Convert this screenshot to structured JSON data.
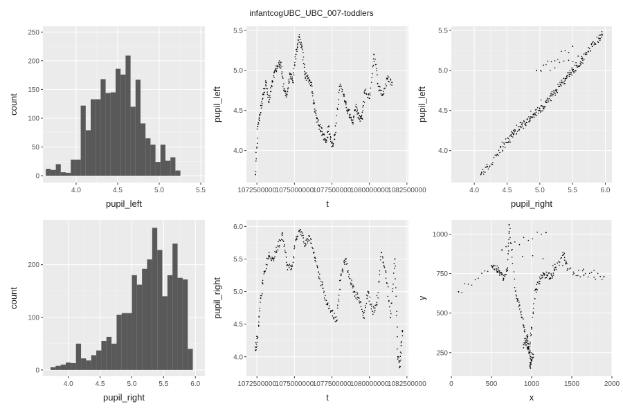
{
  "title": "infantcogUBC_UBC_007-toddlers",
  "colors": {
    "panel_bg": "#ebebeb",
    "grid_major": "#ffffff",
    "bar_fill": "#595959",
    "point": "#000000"
  },
  "chart_data": [
    {
      "id": "hist-pupil-left",
      "type": "bar",
      "xlabel": "pupil_left",
      "ylabel": "count",
      "xlim": [
        3.6,
        5.55
      ],
      "ylim": [
        -12,
        260
      ],
      "xticks": [
        4.0,
        4.5,
        5.0,
        5.5
      ],
      "xtick_labels": [
        "4.0",
        "4.5",
        "5.0",
        "5.5"
      ],
      "yticks": [
        0,
        50,
        100,
        150,
        200,
        250
      ],
      "ytick_labels": [
        "0",
        "50",
        "100",
        "150",
        "200",
        "250"
      ],
      "bin_start": 3.635,
      "bin_width": 0.06,
      "values": [
        12,
        10,
        20,
        6,
        5,
        28,
        28,
        122,
        79,
        133,
        133,
        168,
        144,
        145,
        186,
        176,
        209,
        120,
        167,
        91,
        65,
        54,
        24,
        54,
        26,
        32,
        9
      ]
    },
    {
      "id": "scatter-t-pupil-left",
      "type": "scatter",
      "xlabel": "t",
      "ylabel": "pupil_left",
      "xlim": [
        1071800000,
        1082600000
      ],
      "ylim": [
        3.6,
        5.55
      ],
      "xticks": [
        1072500000,
        1075000000,
        1077500000,
        1080000000,
        1082500000
      ],
      "xtick_labels": [
        "1072500000",
        "1075000000",
        "1077500000",
        "1080000000",
        "1082500000"
      ],
      "yticks": [
        4.0,
        4.5,
        5.0,
        5.5
      ],
      "ytick_labels": [
        "4.0",
        "4.5",
        "5.0",
        "5.5"
      ],
      "x": [
        1072400000,
        1072550000,
        1072700000,
        1072900000,
        1073100000,
        1073300000,
        1073500000,
        1073700000,
        1073900000,
        1074100000,
        1074300000,
        1074500000,
        1074700000,
        1074900000,
        1075100000,
        1075300000,
        1075500000,
        1075700000,
        1075900000,
        1076100000,
        1076300000,
        1076500000,
        1076700000,
        1076900000,
        1077100000,
        1077300000,
        1077500000,
        1077700000,
        1078000000,
        1078300000,
        1078500000,
        1078700000,
        1078900000,
        1079100000,
        1079300000,
        1079500000,
        1079700000,
        1080000000,
        1080300000,
        1080600000,
        1080900000,
        1081200000,
        1081500000
      ],
      "y": [
        3.7,
        4.3,
        4.45,
        4.7,
        4.85,
        4.6,
        4.8,
        5.0,
        5.05,
        5.1,
        4.75,
        4.7,
        4.95,
        4.85,
        5.2,
        5.42,
        5.3,
        4.95,
        4.9,
        4.85,
        4.6,
        4.4,
        4.3,
        4.2,
        4.1,
        4.3,
        4.05,
        4.2,
        4.8,
        4.7,
        4.5,
        4.45,
        4.35,
        4.55,
        4.4,
        4.4,
        4.75,
        4.65,
        5.2,
        4.8,
        4.7,
        4.9,
        4.85
      ]
    },
    {
      "id": "scatter-pupil-right-pupil-left",
      "type": "scatter",
      "xlabel": "pupil_right",
      "ylabel": "pupil_left",
      "xlim": [
        3.65,
        6.1
      ],
      "ylim": [
        3.6,
        5.55
      ],
      "xticks": [
        4.0,
        4.5,
        5.0,
        5.5,
        6.0
      ],
      "xtick_labels": [
        "4.0",
        "4.5",
        "5.0",
        "5.5",
        "6.0"
      ],
      "yticks": [
        4.0,
        4.5,
        5.0,
        5.5
      ],
      "ytick_labels": [
        "4.0",
        "4.5",
        "5.0",
        "5.5"
      ],
      "x": [
        4.1,
        4.2,
        4.35,
        4.5,
        4.6,
        4.7,
        4.8,
        4.9,
        5.0,
        5.1,
        5.2,
        5.3,
        5.4,
        5.5,
        5.6,
        5.7,
        5.8,
        5.9,
        5.95,
        4.4,
        4.6,
        4.85,
        5.05,
        5.25,
        5.45,
        5.65,
        4.95,
        5.5
      ],
      "y": [
        3.7,
        3.8,
        3.95,
        4.1,
        4.2,
        4.3,
        4.35,
        4.45,
        4.5,
        4.6,
        4.7,
        4.8,
        4.9,
        5.0,
        5.05,
        5.2,
        5.3,
        5.4,
        5.45,
        4.05,
        4.25,
        4.4,
        4.55,
        4.75,
        4.95,
        5.15,
        5.0,
        5.3
      ]
    },
    {
      "id": "hist-pupil-right",
      "type": "bar",
      "xlabel": "pupil_right",
      "ylabel": "count",
      "xlim": [
        3.6,
        6.15
      ],
      "ylim": [
        -12,
        285
      ],
      "xticks": [
        4.0,
        4.5,
        5.0,
        5.5,
        6.0
      ],
      "xtick_labels": [
        "4.0",
        "4.5",
        "5.0",
        "5.5",
        "6.0"
      ],
      "yticks": [
        0,
        100,
        200
      ],
      "ytick_labels": [
        "0",
        "100",
        "200"
      ],
      "bin_start": 3.72,
      "bin_width": 0.08,
      "values": [
        5,
        8,
        10,
        14,
        13,
        50,
        22,
        18,
        28,
        37,
        55,
        63,
        50,
        105,
        108,
        108,
        180,
        162,
        192,
        210,
        270,
        228,
        140,
        180,
        240,
        175,
        172,
        40
      ]
    },
    {
      "id": "scatter-t-pupil-right",
      "type": "scatter",
      "xlabel": "t",
      "ylabel": "pupil_right",
      "xlim": [
        1071800000,
        1082600000
      ],
      "ylim": [
        3.7,
        6.1
      ],
      "xticks": [
        1072500000,
        1075000000,
        1077500000,
        1080000000,
        1082500000
      ],
      "xtick_labels": [
        "1072500000",
        "1075000000",
        "1077500000",
        "1080000000",
        "1082500000"
      ],
      "yticks": [
        4.0,
        4.5,
        5.0,
        5.5,
        6.0
      ],
      "ytick_labels": [
        "4.0",
        "4.5",
        "5.0",
        "5.5",
        "6.0"
      ],
      "x": [
        1072400000,
        1072550000,
        1072750000,
        1073000000,
        1073300000,
        1073600000,
        1073900000,
        1074200000,
        1074500000,
        1074800000,
        1075100000,
        1075400000,
        1075700000,
        1076000000,
        1076300000,
        1076600000,
        1076900000,
        1077200000,
        1077500000,
        1077800000,
        1078100000,
        1078400000,
        1078700000,
        1079000000,
        1079300000,
        1079600000,
        1079900000,
        1080200000,
        1080500000,
        1080800000,
        1081100000,
        1081400000,
        1081700000,
        1081900000,
        1082050000,
        1082200000
      ],
      "y": [
        4.1,
        4.3,
        4.9,
        5.3,
        5.55,
        5.5,
        5.7,
        5.9,
        5.4,
        5.35,
        5.8,
        5.95,
        5.7,
        5.85,
        5.6,
        5.3,
        5.05,
        4.8,
        4.7,
        4.55,
        5.25,
        5.5,
        5.2,
        5.0,
        4.9,
        4.6,
        5.0,
        4.7,
        4.8,
        5.6,
        5.3,
        4.6,
        5.5,
        4.0,
        3.85,
        4.4
      ]
    },
    {
      "id": "scatter-x-y",
      "type": "scatter",
      "xlabel": "x",
      "ylabel": "y",
      "xlim": [
        0,
        2000
      ],
      "ylim": [
        100,
        1090
      ],
      "xticks": [
        0,
        500,
        1000,
        1500,
        2000
      ],
      "xtick_labels": [
        "0",
        "500",
        "1000",
        "1500",
        "2000"
      ],
      "yticks": [
        250,
        500,
        750,
        1000
      ],
      "ytick_labels": [
        "250",
        "500",
        "750",
        "1000"
      ],
      "x": [
        90,
        500,
        560,
        600,
        650,
        700,
        720,
        800,
        850,
        900,
        950,
        1000,
        980,
        1020,
        900,
        950,
        970,
        1000,
        1050,
        1100,
        1150,
        1200,
        1250,
        1300,
        1400,
        1450,
        1650,
        1900,
        630,
        1180
      ],
      "y": [
        635,
        800,
        780,
        760,
        720,
        770,
        1060,
        640,
        550,
        420,
        280,
        200,
        160,
        220,
        300,
        350,
        250,
        400,
        650,
        700,
        750,
        740,
        740,
        790,
        870,
        780,
        740,
        730,
        900,
        1010
      ]
    }
  ]
}
